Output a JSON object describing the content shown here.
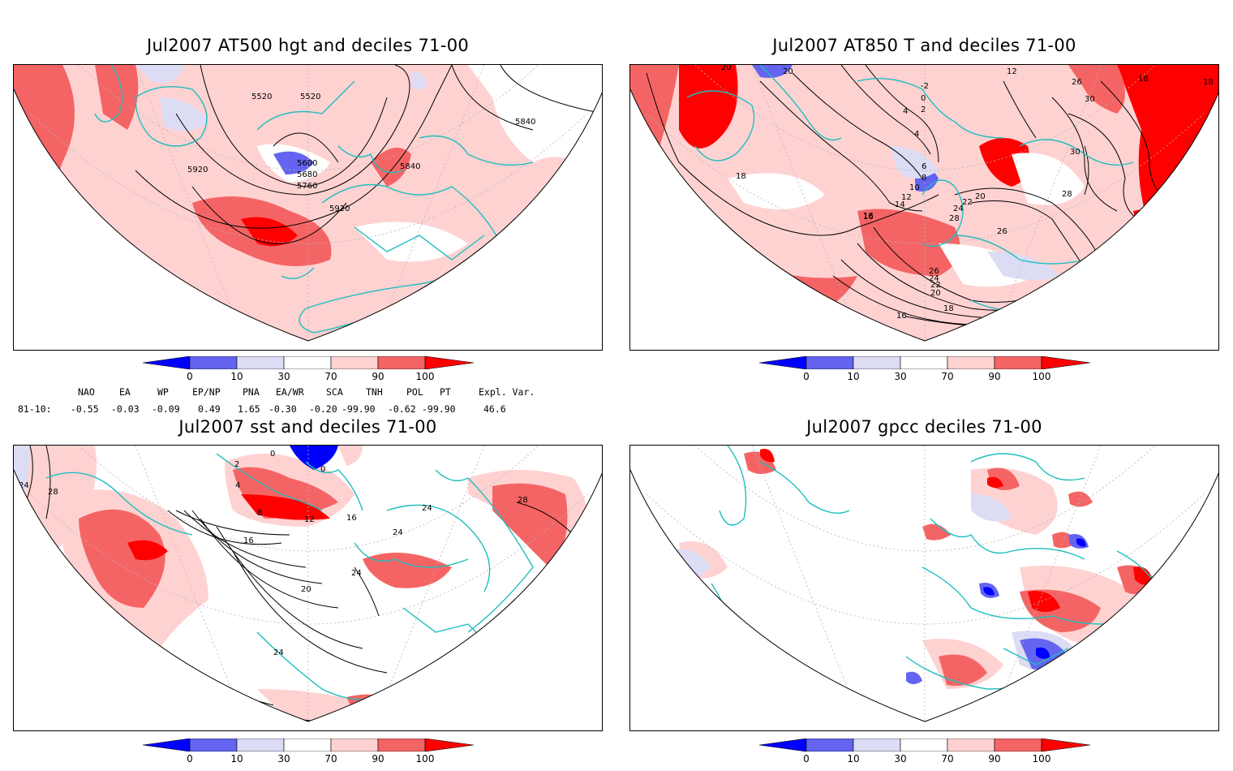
{
  "panels": [
    {
      "id": "p1",
      "title": "Jul2007 AT500 hgt and deciles 71-00",
      "contour_labels": [
        "5520",
        "5520",
        "5840",
        "5600",
        "5680",
        "5760",
        "5840",
        "5920",
        "5920"
      ]
    },
    {
      "id": "p2",
      "title": "Jul2007 AT850 T and deciles 71-00",
      "contour_labels": [
        "20",
        "20",
        "-2",
        "0",
        "2",
        "4",
        "4",
        "12",
        "26",
        "30",
        "18",
        "18",
        "18",
        "18",
        "6",
        "8",
        "10",
        "12",
        "14",
        "16",
        "20",
        "22",
        "24",
        "26",
        "28",
        "26",
        "24",
        "22",
        "20",
        "18",
        "16",
        "16",
        "30",
        "28",
        "16"
      ]
    },
    {
      "id": "p3",
      "title": "Jul2007 sst and deciles 71-00",
      "contour_labels": [
        "24",
        "28",
        "0",
        "2",
        "4",
        "8",
        "12",
        "0",
        "16",
        "16",
        "24",
        "24",
        "24",
        "28",
        "20",
        "24",
        "28"
      ]
    },
    {
      "id": "p4",
      "title": "Jul2007 gpcc deciles 71-00",
      "contour_labels": []
    }
  ],
  "colorbar": {
    "labels": [
      "0",
      "10",
      "30",
      "70",
      "90",
      "100"
    ],
    "colors": [
      "#0000ff",
      "#6464f0",
      "#dcdcf5",
      "#ffffff",
      "#ffd2d2",
      "#f56464",
      "#ff0000"
    ]
  },
  "indices": {
    "headers": [
      "NAO",
      "EA",
      "WP",
      "EP/NP",
      "PNA",
      "EA/WR",
      "SCA",
      "TNH",
      "POL",
      "PT",
      "Expl. Var."
    ],
    "row_label": "81-10:",
    "values": [
      "-0.55",
      "-0.03",
      "-0.09",
      "0.49",
      "1.65",
      "-0.30",
      "-0.20",
      "-99.90",
      "-0.62",
      "-99.90",
      "46.6"
    ]
  },
  "colors": {
    "coast": "#1ebebe",
    "red_dark": "#ff0000",
    "red_mid": "#f56464",
    "red_light": "#ffd2d2",
    "blue_dark": "#0000ff",
    "blue_mid": "#6464f0",
    "blue_light": "#dcdcf5"
  }
}
